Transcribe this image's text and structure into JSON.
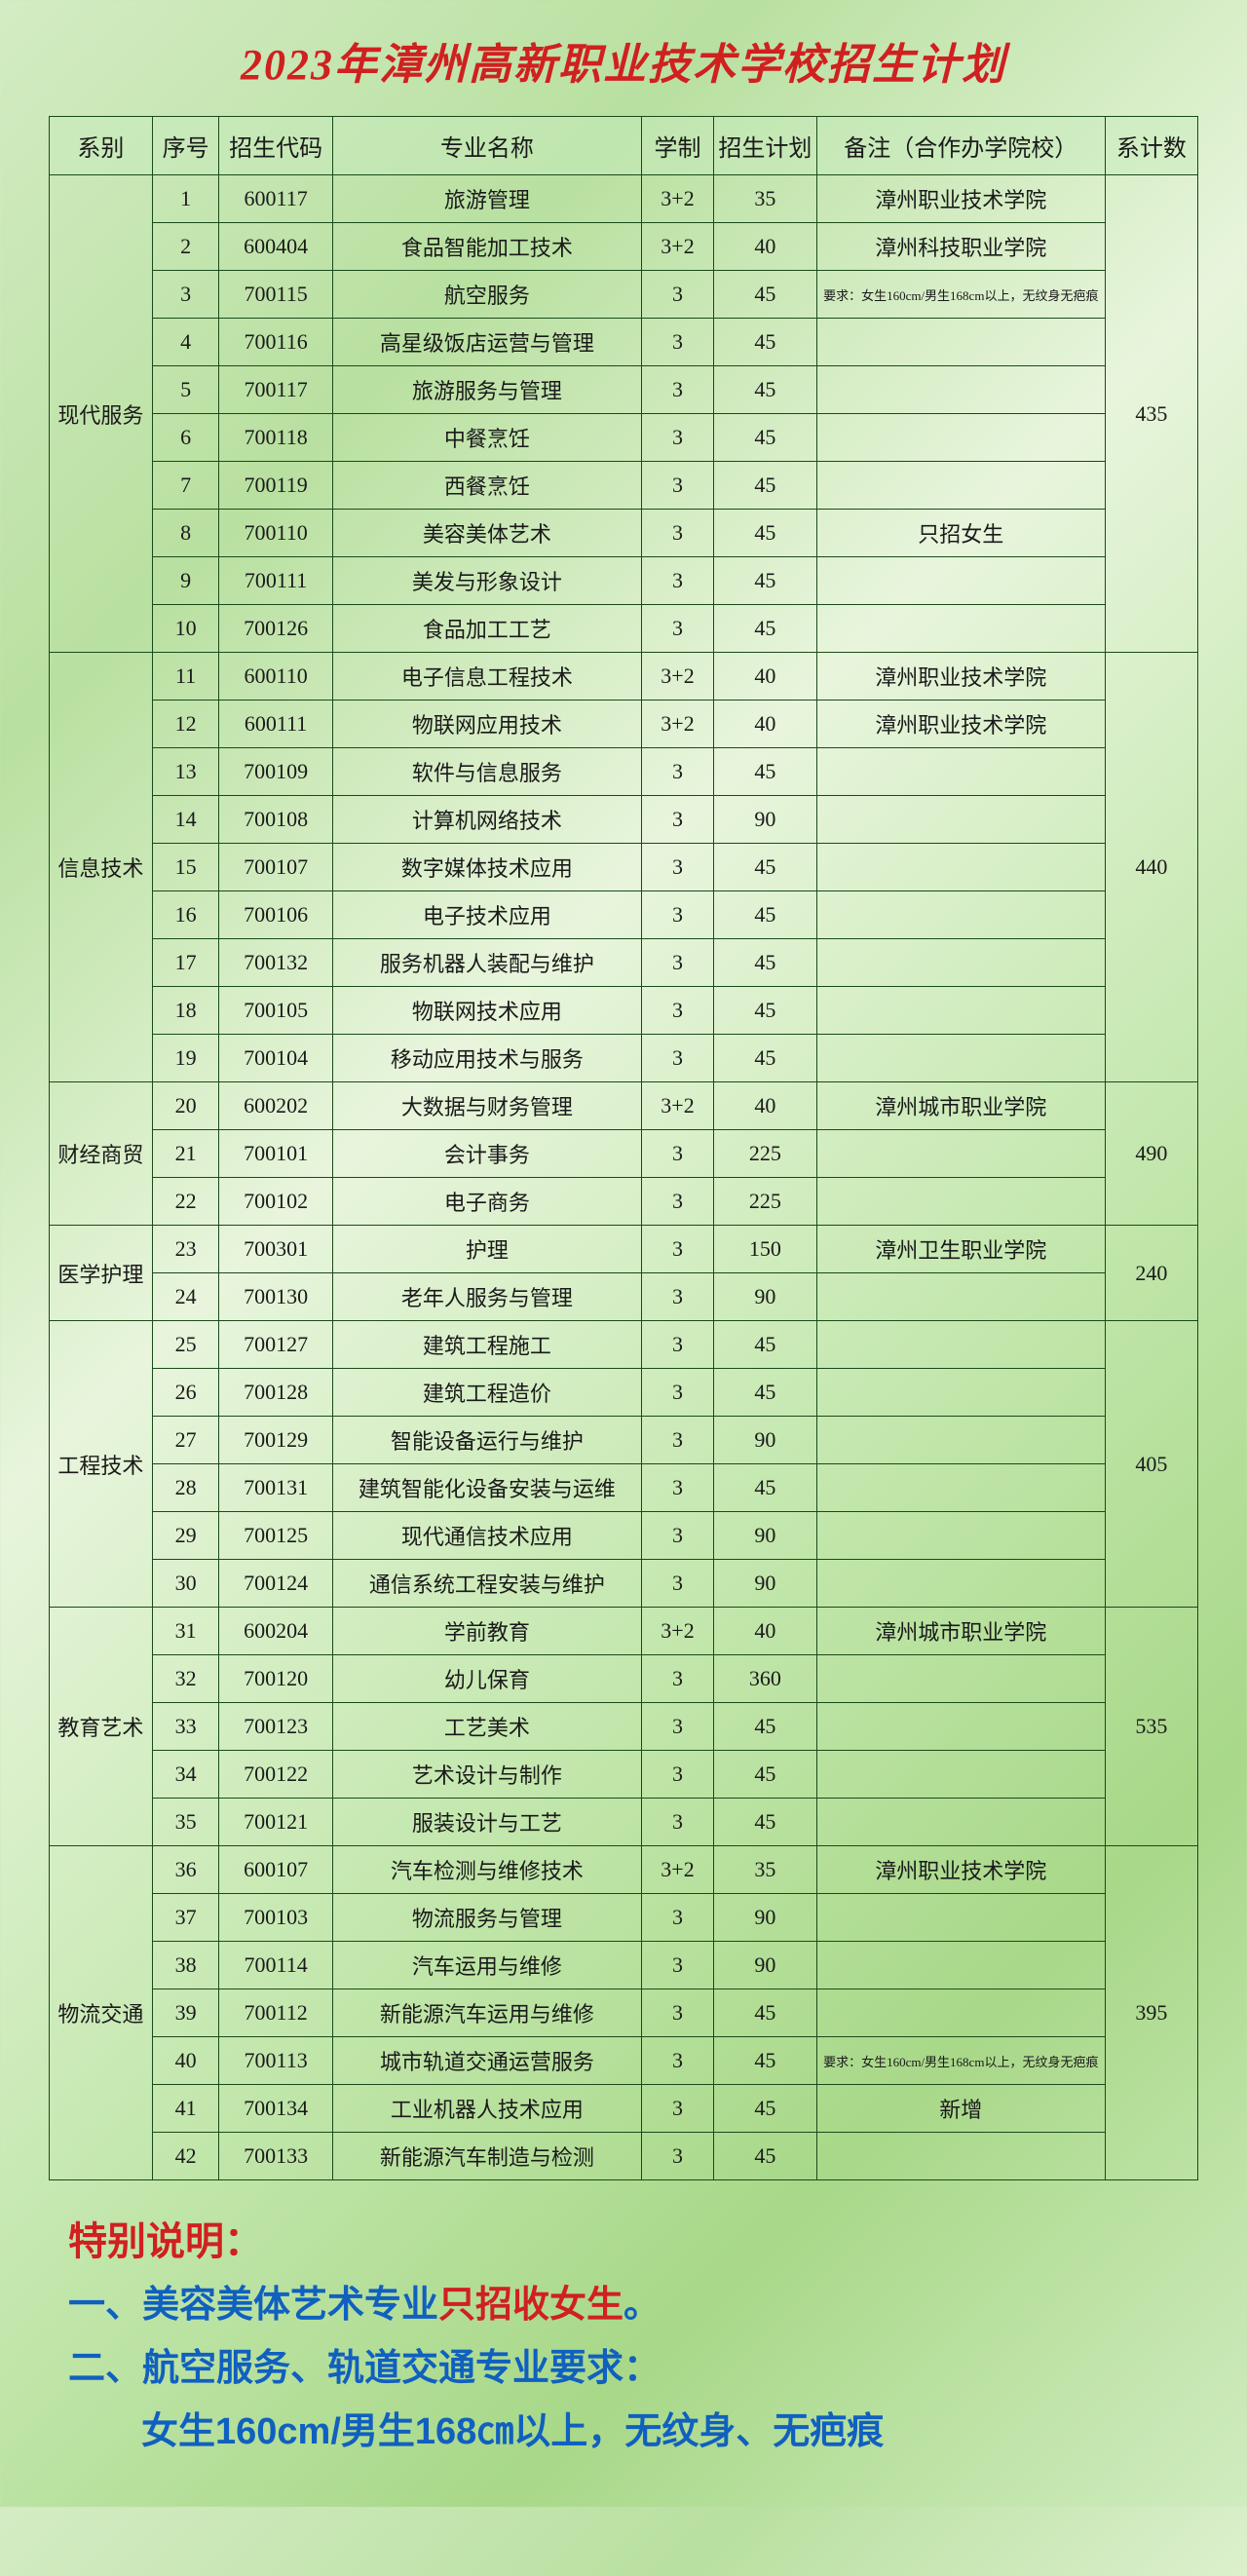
{
  "title": "2023年漳州高新职业技术学校招生计划",
  "headers": {
    "dept": "系别",
    "seq": "序号",
    "code": "招生代码",
    "name": "专业名称",
    "dur": "学制",
    "plan": "招生计划",
    "note": "备注（合作办学院校）",
    "total": "系计数"
  },
  "departments": [
    {
      "name": "现代服务",
      "total": "435",
      "rows": [
        {
          "seq": "1",
          "code": "600117",
          "name": "旅游管理",
          "dur": "3+2",
          "plan": "35",
          "note": "漳州职业技术学院"
        },
        {
          "seq": "2",
          "code": "600404",
          "name": "食品智能加工技术",
          "dur": "3+2",
          "plan": "40",
          "note": "漳州科技职业学院"
        },
        {
          "seq": "3",
          "code": "700115",
          "name": "航空服务",
          "dur": "3",
          "plan": "45",
          "note": "要求：女生160cm/男生168cm以上，无纹身无疤痕",
          "small": true
        },
        {
          "seq": "4",
          "code": "700116",
          "name": "高星级饭店运营与管理",
          "dur": "3",
          "plan": "45",
          "note": ""
        },
        {
          "seq": "5",
          "code": "700117",
          "name": "旅游服务与管理",
          "dur": "3",
          "plan": "45",
          "note": ""
        },
        {
          "seq": "6",
          "code": "700118",
          "name": "中餐烹饪",
          "dur": "3",
          "plan": "45",
          "note": ""
        },
        {
          "seq": "7",
          "code": "700119",
          "name": "西餐烹饪",
          "dur": "3",
          "plan": "45",
          "note": ""
        },
        {
          "seq": "8",
          "code": "700110",
          "name": "美容美体艺术",
          "dur": "3",
          "plan": "45",
          "note": "只招女生"
        },
        {
          "seq": "9",
          "code": "700111",
          "name": "美发与形象设计",
          "dur": "3",
          "plan": "45",
          "note": ""
        },
        {
          "seq": "10",
          "code": "700126",
          "name": "食品加工工艺",
          "dur": "3",
          "plan": "45",
          "note": ""
        }
      ]
    },
    {
      "name": "信息技术",
      "total": "440",
      "rows": [
        {
          "seq": "11",
          "code": "600110",
          "name": "电子信息工程技术",
          "dur": "3+2",
          "plan": "40",
          "note": "漳州职业技术学院"
        },
        {
          "seq": "12",
          "code": "600111",
          "name": "物联网应用技术",
          "dur": "3+2",
          "plan": "40",
          "note": "漳州职业技术学院"
        },
        {
          "seq": "13",
          "code": "700109",
          "name": "软件与信息服务",
          "dur": "3",
          "plan": "45",
          "note": ""
        },
        {
          "seq": "14",
          "code": "700108",
          "name": "计算机网络技术",
          "dur": "3",
          "plan": "90",
          "note": ""
        },
        {
          "seq": "15",
          "code": "700107",
          "name": "数字媒体技术应用",
          "dur": "3",
          "plan": "45",
          "note": ""
        },
        {
          "seq": "16",
          "code": "700106",
          "name": "电子技术应用",
          "dur": "3",
          "plan": "45",
          "note": ""
        },
        {
          "seq": "17",
          "code": "700132",
          "name": "服务机器人装配与维护",
          "dur": "3",
          "plan": "45",
          "note": ""
        },
        {
          "seq": "18",
          "code": "700105",
          "name": "物联网技术应用",
          "dur": "3",
          "plan": "45",
          "note": ""
        },
        {
          "seq": "19",
          "code": "700104",
          "name": "移动应用技术与服务",
          "dur": "3",
          "plan": "45",
          "note": ""
        }
      ]
    },
    {
      "name": "财经商贸",
      "total": "490",
      "rows": [
        {
          "seq": "20",
          "code": "600202",
          "name": "大数据与财务管理",
          "dur": "3+2",
          "plan": "40",
          "note": "漳州城市职业学院"
        },
        {
          "seq": "21",
          "code": "700101",
          "name": "会计事务",
          "dur": "3",
          "plan": "225",
          "note": ""
        },
        {
          "seq": "22",
          "code": "700102",
          "name": "电子商务",
          "dur": "3",
          "plan": "225",
          "note": ""
        }
      ]
    },
    {
      "name": "医学护理",
      "total": "240",
      "rows": [
        {
          "seq": "23",
          "code": "700301",
          "name": "护理",
          "dur": "3",
          "plan": "150",
          "note": "漳州卫生职业学院"
        },
        {
          "seq": "24",
          "code": "700130",
          "name": "老年人服务与管理",
          "dur": "3",
          "plan": "90",
          "note": ""
        }
      ]
    },
    {
      "name": "工程技术",
      "total": "405",
      "rows": [
        {
          "seq": "25",
          "code": "700127",
          "name": "建筑工程施工",
          "dur": "3",
          "plan": "45",
          "note": ""
        },
        {
          "seq": "26",
          "code": "700128",
          "name": "建筑工程造价",
          "dur": "3",
          "plan": "45",
          "note": ""
        },
        {
          "seq": "27",
          "code": "700129",
          "name": "智能设备运行与维护",
          "dur": "3",
          "plan": "90",
          "note": ""
        },
        {
          "seq": "28",
          "code": "700131",
          "name": "建筑智能化设备安装与运维",
          "dur": "3",
          "plan": "45",
          "note": ""
        },
        {
          "seq": "29",
          "code": "700125",
          "name": "现代通信技术应用",
          "dur": "3",
          "plan": "90",
          "note": ""
        },
        {
          "seq": "30",
          "code": "700124",
          "name": "通信系统工程安装与维护",
          "dur": "3",
          "plan": "90",
          "note": ""
        }
      ]
    },
    {
      "name": "教育艺术",
      "total": "535",
      "rows": [
        {
          "seq": "31",
          "code": "600204",
          "name": "学前教育",
          "dur": "3+2",
          "plan": "40",
          "note": "漳州城市职业学院"
        },
        {
          "seq": "32",
          "code": "700120",
          "name": "幼儿保育",
          "dur": "3",
          "plan": "360",
          "note": ""
        },
        {
          "seq": "33",
          "code": "700123",
          "name": "工艺美术",
          "dur": "3",
          "plan": "45",
          "note": ""
        },
        {
          "seq": "34",
          "code": "700122",
          "name": "艺术设计与制作",
          "dur": "3",
          "plan": "45",
          "note": ""
        },
        {
          "seq": "35",
          "code": "700121",
          "name": "服装设计与工艺",
          "dur": "3",
          "plan": "45",
          "note": ""
        }
      ]
    },
    {
      "name": "物流交通",
      "total": "395",
      "rows": [
        {
          "seq": "36",
          "code": "600107",
          "name": "汽车检测与维修技术",
          "dur": "3+2",
          "plan": "35",
          "note": "漳州职业技术学院"
        },
        {
          "seq": "37",
          "code": "700103",
          "name": "物流服务与管理",
          "dur": "3",
          "plan": "90",
          "note": ""
        },
        {
          "seq": "38",
          "code": "700114",
          "name": "汽车运用与维修",
          "dur": "3",
          "plan": "90",
          "note": ""
        },
        {
          "seq": "39",
          "code": "700112",
          "name": "新能源汽车运用与维修",
          "dur": "3",
          "plan": "45",
          "note": ""
        },
        {
          "seq": "40",
          "code": "700113",
          "name": "城市轨道交通运营服务",
          "dur": "3",
          "plan": "45",
          "note": "要求：女生160cm/男生168cm以上，无纹身无疤痕",
          "small": true
        },
        {
          "seq": "41",
          "code": "700134",
          "name": "工业机器人技术应用",
          "dur": "3",
          "plan": "45",
          "note": "新增"
        },
        {
          "seq": "42",
          "code": "700133",
          "name": "新能源汽车制造与检测",
          "dur": "3",
          "plan": "45",
          "note": ""
        }
      ]
    }
  ],
  "notes": {
    "title": "特别说明：",
    "line1a": "一、美容美体艺术专业",
    "line1b": "只招收女生",
    "line1c": "。",
    "line2": "二、航空服务、轨道交通专业要求：",
    "line3": "女生160cm/男生168㎝以上，无纹身、无疤痕"
  }
}
